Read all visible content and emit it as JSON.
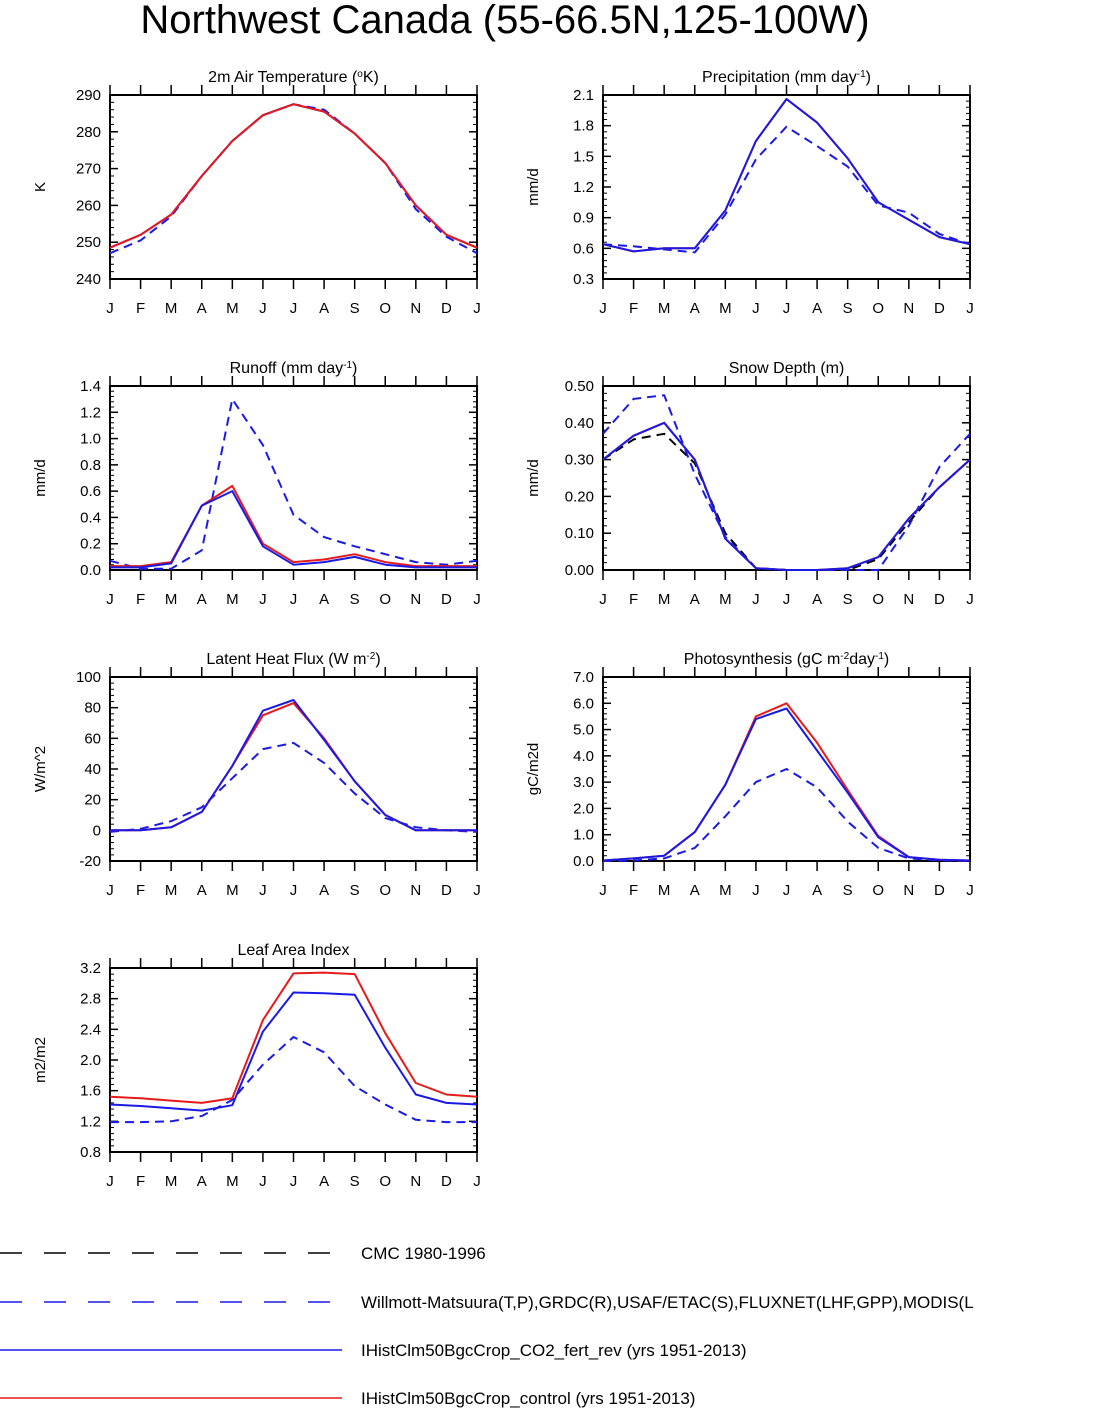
{
  "figure": {
    "title": "Northwest Canada (55-66.5N,125-100W)",
    "months": [
      "J",
      "F",
      "M",
      "A",
      "M",
      "J",
      "J",
      "A",
      "S",
      "O",
      "N",
      "D",
      "J"
    ],
    "series_styles": [
      {
        "key": "cmc",
        "color": "#000000",
        "dash": true
      },
      {
        "key": "obs",
        "color": "#1a1ae6",
        "dash": true
      },
      {
        "key": "co2",
        "color": "#1a1ae6",
        "dash": false
      },
      {
        "key": "control",
        "color": "#e61a1a",
        "dash": false
      }
    ]
  },
  "legend": [
    {
      "label": "CMC 1980-1996",
      "color": "#000000",
      "dash": true
    },
    {
      "label": "Willmott-Matsuura(T,P),GRDC(R),USAF/ETAC(S),FLUXNET(LHF,GPP),MODIS(L",
      "color": "#1a1ae6",
      "dash": true
    },
    {
      "label": "IHistClm50BgcCrop_CO2_fert_rev (yrs 1951-2013)",
      "color": "#1a1ae6",
      "dash": false
    },
    {
      "label": "IHistClm50BgcCrop_control (yrs 1951-2013)",
      "color": "#e61a1a",
      "dash": false
    }
  ],
  "chart_data": [
    {
      "type": "line",
      "id": "temp",
      "title": "2m Air Temperature (°K)",
      "title_parts": [
        {
          "t": "2m Air Temperature ("
        },
        {
          "t": "o",
          "sup": true
        },
        {
          "t": "K)"
        }
      ],
      "ylabel": "K",
      "ylim": [
        240,
        290
      ],
      "yticks": [
        240,
        250,
        260,
        270,
        280,
        290
      ],
      "yfmt": 0,
      "x": [
        "J",
        "F",
        "M",
        "A",
        "M",
        "J",
        "J",
        "A",
        "S",
        "O",
        "N",
        "D",
        "J"
      ],
      "series": [
        {
          "key": "obs",
          "values": [
            247,
            250.5,
            257,
            268,
            277.5,
            284.5,
            287.5,
            286,
            279.5,
            271.5,
            259,
            251.5,
            247
          ]
        },
        {
          "key": "co2",
          "values": [
            248.5,
            252,
            257.5,
            268,
            277.5,
            284.5,
            287.5,
            285.5,
            279.5,
            271.5,
            260,
            252,
            248.5
          ]
        },
        {
          "key": "control",
          "values": [
            248.5,
            252,
            257.5,
            268,
            277.5,
            284.5,
            287.5,
            285.5,
            279.5,
            271.5,
            260,
            252,
            248.5
          ]
        }
      ]
    },
    {
      "type": "line",
      "id": "precip",
      "title": "Precipitation (mm day-1)",
      "title_parts": [
        {
          "t": "Precipitation (mm day"
        },
        {
          "t": "-1",
          "sup": true
        },
        {
          "t": ")"
        }
      ],
      "ylabel": "mm/d",
      "ylim": [
        0.3,
        2.1
      ],
      "yticks": [
        0.3,
        0.6,
        0.9,
        1.2,
        1.5,
        1.8,
        2.1
      ],
      "yfmt": 1,
      "x": [
        "J",
        "F",
        "M",
        "A",
        "M",
        "J",
        "J",
        "A",
        "S",
        "O",
        "N",
        "D",
        "J"
      ],
      "series": [
        {
          "key": "obs",
          "values": [
            0.64,
            0.62,
            0.59,
            0.56,
            0.93,
            1.47,
            1.79,
            1.6,
            1.4,
            1.02,
            0.95,
            0.74,
            0.64
          ]
        },
        {
          "key": "control",
          "values": [
            0.64,
            0.57,
            0.6,
            0.6,
            0.97,
            1.65,
            2.06,
            1.83,
            1.48,
            1.05,
            0.88,
            0.71,
            0.64
          ]
        },
        {
          "key": "co2",
          "values": [
            0.64,
            0.57,
            0.6,
            0.6,
            0.97,
            1.65,
            2.06,
            1.83,
            1.48,
            1.05,
            0.88,
            0.71,
            0.64
          ]
        }
      ]
    },
    {
      "type": "line",
      "id": "runoff",
      "title": "Runoff (mm day-1)",
      "title_parts": [
        {
          "t": "Runoff (mm day"
        },
        {
          "t": "-1",
          "sup": true
        },
        {
          "t": ")"
        }
      ],
      "ylabel": "mm/d",
      "ylim": [
        0,
        1.4
      ],
      "yticks": [
        0.0,
        0.2,
        0.4,
        0.6,
        0.8,
        1.0,
        1.2,
        1.4
      ],
      "yfmt": 1,
      "x": [
        "J",
        "F",
        "M",
        "A",
        "M",
        "J",
        "J",
        "A",
        "S",
        "O",
        "N",
        "D",
        "J"
      ],
      "series": [
        {
          "key": "obs",
          "values": [
            0.07,
            0.01,
            0.01,
            0.15,
            1.3,
            0.95,
            0.42,
            0.25,
            0.18,
            0.12,
            0.06,
            0.04,
            0.07
          ]
        },
        {
          "key": "control",
          "values": [
            0.03,
            0.03,
            0.06,
            0.49,
            0.64,
            0.2,
            0.06,
            0.08,
            0.12,
            0.06,
            0.03,
            0.03,
            0.03
          ]
        },
        {
          "key": "co2",
          "values": [
            0.02,
            0.02,
            0.05,
            0.49,
            0.6,
            0.18,
            0.04,
            0.06,
            0.1,
            0.04,
            0.02,
            0.02,
            0.02
          ]
        }
      ]
    },
    {
      "type": "line",
      "id": "snow",
      "title": "Snow Depth (m)",
      "title_parts": [
        {
          "t": "Snow Depth (m)"
        }
      ],
      "ylabel": "mm/d",
      "ylim": [
        0,
        0.5
      ],
      "yticks": [
        0.0,
        0.1,
        0.2,
        0.3,
        0.4,
        0.5
      ],
      "yfmt": 2,
      "x": [
        "J",
        "F",
        "M",
        "A",
        "M",
        "J",
        "J",
        "A",
        "S",
        "O",
        "N",
        "D",
        "J"
      ],
      "series": [
        {
          "key": "cmc",
          "values": [
            0.3,
            0.355,
            0.37,
            0.29,
            0.1,
            0.005,
            0.0,
            0.0,
            0.0,
            0.03,
            0.13,
            0.225,
            0.3
          ]
        },
        {
          "key": "obs",
          "values": [
            0.37,
            0.465,
            0.475,
            0.26,
            0.09,
            0.005,
            0.0,
            0.0,
            0.0,
            0.0,
            0.12,
            0.28,
            0.37
          ]
        },
        {
          "key": "control",
          "values": [
            0.3,
            0.365,
            0.4,
            0.3,
            0.085,
            0.005,
            0.0,
            0.0,
            0.005,
            0.035,
            0.14,
            0.225,
            0.3
          ]
        },
        {
          "key": "co2",
          "values": [
            0.3,
            0.365,
            0.4,
            0.3,
            0.085,
            0.005,
            0.0,
            0.0,
            0.005,
            0.035,
            0.14,
            0.225,
            0.3
          ]
        }
      ]
    },
    {
      "type": "line",
      "id": "lhf",
      "title": "Latent Heat Flux (W m-2)",
      "title_parts": [
        {
          "t": "Latent Heat Flux (W m"
        },
        {
          "t": "-2",
          "sup": true
        },
        {
          "t": ")"
        }
      ],
      "ylabel": "W/m^2",
      "ylim": [
        -20,
        100
      ],
      "yticks": [
        -20,
        0,
        20,
        40,
        60,
        80,
        100
      ],
      "yfmt": 0,
      "x": [
        "J",
        "F",
        "M",
        "A",
        "M",
        "J",
        "J",
        "A",
        "S",
        "O",
        "N",
        "D",
        "J"
      ],
      "series": [
        {
          "key": "obs",
          "values": [
            -1,
            1,
            6,
            15,
            34,
            53,
            57,
            44,
            24,
            8,
            2,
            0,
            -1
          ]
        },
        {
          "key": "control",
          "values": [
            0,
            0,
            2,
            12,
            42,
            75,
            83,
            60,
            32,
            10,
            0,
            0,
            0
          ]
        },
        {
          "key": "co2",
          "values": [
            0,
            0,
            2,
            12,
            42,
            78,
            85,
            59,
            32,
            10,
            0,
            0,
            0
          ]
        }
      ]
    },
    {
      "type": "line",
      "id": "gpp",
      "title": "Photosynthesis (gC m-2day-1)",
      "title_parts": [
        {
          "t": "Photosynthesis (gC m"
        },
        {
          "t": "-2",
          "sup": true
        },
        {
          "t": "day"
        },
        {
          "t": "-1",
          "sup": true
        },
        {
          "t": ")"
        }
      ],
      "ylabel": "gC/m2d",
      "ylim": [
        0,
        7
      ],
      "yticks": [
        0.0,
        1.0,
        2.0,
        3.0,
        4.0,
        5.0,
        6.0,
        7.0
      ],
      "yfmt": 1,
      "x": [
        "J",
        "F",
        "M",
        "A",
        "M",
        "J",
        "J",
        "A",
        "S",
        "O",
        "N",
        "D",
        "J"
      ],
      "series": [
        {
          "key": "obs",
          "values": [
            0.0,
            0.02,
            0.1,
            0.5,
            1.7,
            3.0,
            3.5,
            2.8,
            1.5,
            0.5,
            0.1,
            0.02,
            0.0
          ]
        },
        {
          "key": "control",
          "values": [
            0.02,
            0.1,
            0.2,
            1.1,
            2.9,
            5.5,
            6.0,
            4.5,
            2.7,
            0.95,
            0.15,
            0.05,
            0.02
          ]
        },
        {
          "key": "co2",
          "values": [
            0.02,
            0.1,
            0.2,
            1.1,
            2.9,
            5.4,
            5.8,
            4.2,
            2.6,
            0.9,
            0.15,
            0.05,
            0.02
          ]
        }
      ]
    },
    {
      "type": "line",
      "id": "lai",
      "title": "Leaf Area Index",
      "title_parts": [
        {
          "t": "Leaf Area Index"
        }
      ],
      "ylabel": "m2/m2",
      "ylim": [
        0.8,
        3.2
      ],
      "yticks": [
        0.8,
        1.2,
        1.6,
        2.0,
        2.4,
        2.8,
        3.2
      ],
      "yfmt": 1,
      "x": [
        "J",
        "F",
        "M",
        "A",
        "M",
        "J",
        "J",
        "A",
        "S",
        "O",
        "N",
        "D",
        "J"
      ],
      "series": [
        {
          "key": "obs",
          "values": [
            1.19,
            1.19,
            1.2,
            1.27,
            1.48,
            1.94,
            2.3,
            2.1,
            1.66,
            1.42,
            1.22,
            1.19,
            1.19
          ]
        },
        {
          "key": "control",
          "values": [
            1.52,
            1.5,
            1.47,
            1.44,
            1.5,
            2.52,
            3.13,
            3.14,
            3.12,
            2.35,
            1.7,
            1.55,
            1.52
          ]
        },
        {
          "key": "co2",
          "values": [
            1.42,
            1.4,
            1.37,
            1.34,
            1.41,
            2.37,
            2.88,
            2.87,
            2.85,
            2.16,
            1.55,
            1.44,
            1.42
          ]
        }
      ]
    }
  ]
}
